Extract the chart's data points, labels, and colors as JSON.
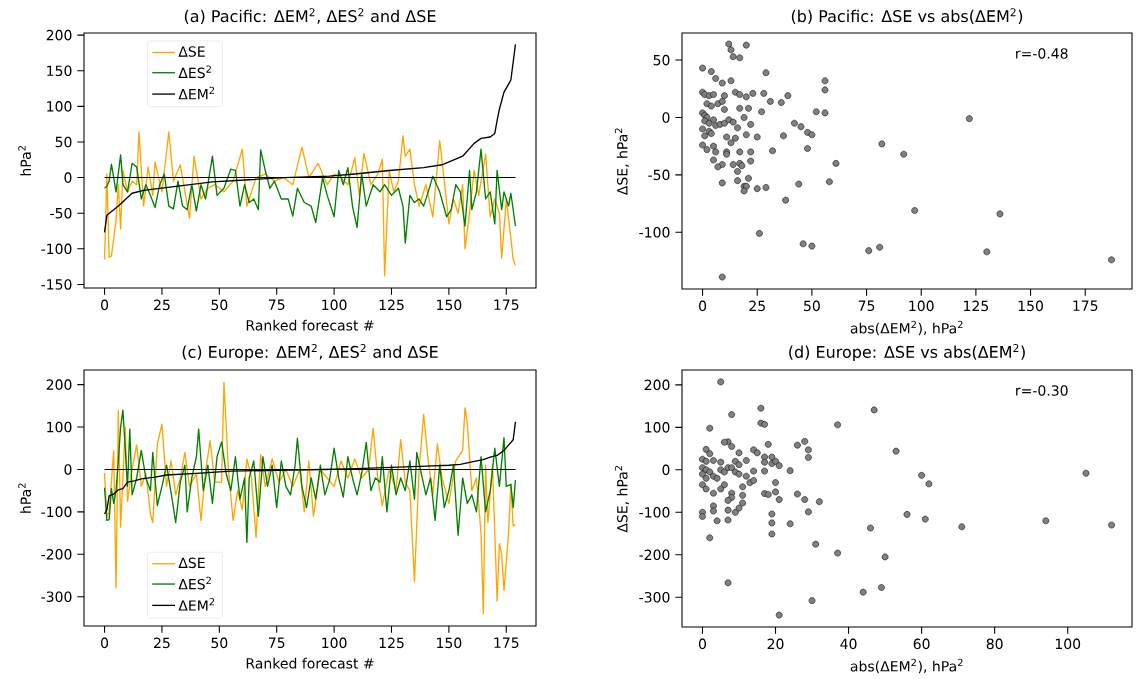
{
  "chart_data": [
    {
      "type": "line",
      "title": "(a) Pacific: ΔEM$^{2}$, ΔES$^{2}$ and ΔSE",
      "xlabel": "Ranked forecast #",
      "ylabel": "hPa$^{2}$",
      "xlim": [
        -8.95,
        187.95
      ],
      "ylim": [
        -155,
        203
      ],
      "xticks": [
        0,
        25,
        50,
        75,
        100,
        125,
        150,
        175
      ],
      "yticks": [
        -150,
        -100,
        -50,
        0,
        50,
        100,
        150,
        200
      ],
      "legend": "top left",
      "ref_lines": [
        {
          "axis": "y",
          "value": 0,
          "color": "#000000"
        }
      ],
      "series": [
        {
          "name": "ΔSE",
          "color": "#ffa500",
          "x": [
            0,
            1,
            2,
            3,
            5,
            6,
            7,
            8,
            10,
            12,
            14,
            15,
            17,
            19,
            21,
            22,
            25,
            28,
            30,
            33,
            37,
            39,
            42,
            45,
            48,
            52,
            56,
            60,
            62,
            66,
            70,
            74,
            78,
            82,
            86,
            89,
            93,
            97,
            100,
            103,
            106,
            109,
            111,
            113,
            116,
            119,
            121,
            122,
            124,
            126,
            128,
            130,
            131,
            133,
            135,
            137,
            140,
            143,
            146,
            148,
            150,
            152,
            154,
            156,
            157,
            159,
            161,
            163,
            166,
            168,
            170,
            172,
            173,
            175,
            177,
            178,
            179
          ],
          "values": [
            -115,
            5,
            -112,
            -110,
            -60,
            -10,
            -72,
            10,
            -20,
            -5,
            -10,
            64,
            -40,
            15,
            -25,
            22,
            -20,
            64,
            -5,
            18,
            -57,
            30,
            -30,
            -15,
            -10,
            -20,
            -5,
            40,
            -40,
            0,
            5,
            -5,
            0,
            -10,
            43,
            0,
            20,
            -10,
            5,
            0,
            -10,
            28,
            -25,
            34,
            -10,
            5,
            26,
            -138,
            10,
            -20,
            -5,
            59,
            30,
            40,
            -10,
            -40,
            -10,
            -55,
            52,
            -5,
            -65,
            -30,
            -50,
            -10,
            -100,
            -50,
            10,
            -25,
            33,
            -55,
            -30,
            -50,
            -113,
            -30,
            -85,
            -115,
            -123
          ]
        },
        {
          "name": "ΔES$^{2}$",
          "color": "#008000",
          "x": [
            0,
            1,
            2,
            3,
            5,
            7,
            8,
            10,
            12,
            14,
            16,
            18,
            20,
            22,
            24,
            26,
            28,
            30,
            32,
            34,
            36,
            38,
            40,
            42,
            44,
            47,
            49,
            52,
            55,
            57,
            59,
            61,
            63,
            65,
            67,
            68,
            70,
            72,
            74,
            77,
            80,
            82,
            84,
            87,
            90,
            92,
            95,
            97,
            100,
            102,
            104,
            106,
            108,
            110,
            112,
            114,
            117,
            120,
            122,
            125,
            128,
            130,
            131,
            133,
            135,
            137,
            139,
            141,
            143,
            146,
            149,
            151,
            153,
            155,
            157,
            159,
            160,
            162,
            164,
            166,
            168,
            170,
            171,
            173,
            174,
            176,
            177,
            179
          ],
          "values": [
            -15,
            -12,
            -5,
            19,
            -20,
            32,
            -10,
            -20,
            20,
            15,
            -30,
            -10,
            -25,
            -42,
            -10,
            5,
            -40,
            -44,
            -5,
            -40,
            -45,
            -10,
            -47,
            -10,
            -30,
            30,
            -25,
            -15,
            12,
            10,
            -40,
            -10,
            -35,
            -30,
            -45,
            39,
            10,
            -15,
            -5,
            -30,
            -30,
            -54,
            -15,
            -35,
            -40,
            -63,
            0,
            -25,
            -55,
            10,
            -10,
            14,
            -40,
            -70,
            5,
            -40,
            -10,
            -20,
            -10,
            -25,
            -15,
            -40,
            -92,
            -25,
            -35,
            -30,
            -40,
            -20,
            2,
            -20,
            -55,
            -45,
            -10,
            -20,
            -68,
            10,
            -45,
            -20,
            40,
            -30,
            -20,
            -65,
            10,
            -45,
            -20,
            -40,
            -22,
            -68
          ]
        },
        {
          "name": "ΔEM$^{2}$",
          "color": "#000000",
          "x": [
            0,
            1,
            4,
            7,
            10,
            12,
            17,
            32,
            47,
            63,
            78,
            98,
            109,
            124,
            139,
            147,
            156,
            161,
            164,
            168,
            170,
            171,
            172,
            174,
            177,
            179
          ],
          "values": [
            -77,
            -53,
            -45,
            -37,
            -28,
            -22,
            -18,
            -12,
            -6,
            -3,
            0,
            2,
            5,
            10,
            14,
            18,
            30,
            48,
            55,
            57,
            62,
            80,
            96,
            120,
            137,
            187
          ]
        }
      ]
    },
    {
      "type": "scatter",
      "title": "(b) Pacific: ΔSE vs abs(ΔEM$^{2}$)",
      "xlabel": "abs(ΔEM$^{2}$), hPa$^{2}$",
      "ylabel": "ΔSE, hPa$^{2}$",
      "xlim": [
        -9.4,
        196.4
      ],
      "ylim": [
        -149.4,
        73.6
      ],
      "xticks": [
        0,
        25,
        50,
        75,
        100,
        125,
        150,
        175
      ],
      "yticks": [
        -100,
        -50,
        0,
        50
      ],
      "marker": "circle",
      "annotations": [
        "r=-0.48"
      ],
      "series": [
        {
          "color": "#808080",
          "x": [
            12,
            13,
            20,
            14,
            17,
            0,
            4,
            29,
            6,
            9,
            13,
            56,
            56,
            0,
            1,
            3,
            5,
            10,
            15,
            17,
            20,
            23,
            28,
            39,
            31,
            36,
            52,
            56,
            27,
            21,
            17,
            10,
            2,
            4,
            7,
            9,
            0,
            1,
            2,
            1,
            3,
            5,
            6,
            0,
            1,
            3,
            4,
            8,
            10,
            12,
            14,
            16,
            19,
            22,
            42,
            45,
            48,
            50,
            37,
            25,
            20,
            15,
            13,
            11,
            0,
            2,
            5,
            6,
            11,
            11,
            17,
            22,
            32,
            48,
            82,
            92,
            5,
            9,
            7,
            14,
            17,
            18,
            22,
            16,
            61,
            9,
            16,
            21,
            19,
            20,
            19,
            25,
            29,
            44,
            58,
            38,
            97,
            136,
            26,
            46,
            50,
            76,
            81,
            130,
            187,
            9,
            122
          ],
          "values": [
            64,
            59,
            63,
            53,
            52,
            43,
            40,
            39,
            34,
            30,
            32,
            32,
            24,
            22,
            20,
            19,
            20,
            19,
            22,
            20,
            18,
            21,
            21,
            19,
            14,
            13,
            5,
            4,
            5,
            8,
            8,
            7,
            12,
            10,
            12,
            14,
            4,
            2,
            0,
            -3,
            -5,
            -2,
            -7,
            -10,
            -16,
            -12,
            -14,
            -6,
            -5,
            -2,
            -4,
            -9,
            0,
            -6,
            -5,
            -8,
            -13,
            -15,
            -16,
            -17,
            -15,
            -18,
            -22,
            -17,
            -24,
            -28,
            -25,
            -30,
            -30,
            -32,
            -30,
            -30,
            -29,
            -27,
            -23,
            -32,
            -37,
            -41,
            -43,
            -41,
            -40,
            -42,
            -38,
            -47,
            -40,
            -57,
            -55,
            -53,
            -60,
            -60,
            -64,
            -62,
            -61,
            -58,
            -56,
            -72,
            -81,
            -84,
            -101,
            -110,
            -112,
            -116,
            -113,
            -117,
            -124,
            -139,
            -1
          ]
        }
      ]
    },
    {
      "type": "line",
      "title": "(c) Europe: ΔEM$^{2}$, ΔES$^{2}$ and ΔSE",
      "xlabel": "Ranked forecast #",
      "ylabel": "hPa$^{2}$",
      "xlim": [
        -8.95,
        187.95
      ],
      "ylim": [
        -369,
        234.5
      ],
      "xticks": [
        0,
        25,
        50,
        75,
        100,
        125,
        150,
        175
      ],
      "yticks": [
        -300,
        -200,
        -100,
        0,
        100,
        200
      ],
      "legend": "bottom left",
      "ref_lines": [
        {
          "axis": "y",
          "value": 0,
          "color": "#000000"
        }
      ],
      "series": [
        {
          "name": "ΔSE",
          "color": "#ffa500",
          "x": [
            0,
            1,
            2,
            4,
            5,
            6,
            7,
            9,
            10,
            12,
            14,
            16,
            18,
            20,
            21,
            23,
            25,
            27,
            29,
            31,
            33,
            35,
            37,
            40,
            42,
            44,
            46,
            48,
            51,
            52,
            54,
            56,
            58,
            60,
            62,
            64,
            66,
            68,
            70,
            73,
            76,
            79,
            82,
            85,
            87,
            89,
            91,
            94,
            97,
            100,
            103,
            106,
            109,
            112,
            115,
            117,
            119,
            121,
            124,
            127,
            129,
            131,
            133,
            135,
            137,
            139,
            141,
            143,
            145,
            147,
            150,
            153,
            156,
            157,
            158,
            160,
            162,
            164,
            165,
            166,
            167,
            169,
            171,
            172,
            173,
            174,
            176,
            177,
            178,
            179
          ],
          "values": [
            -8,
            -110,
            -100,
            45,
            -278,
            140,
            -136,
            100,
            -75,
            0,
            58,
            -40,
            -10,
            -105,
            -125,
            60,
            107,
            -40,
            20,
            -60,
            -20,
            40,
            -40,
            -10,
            -120,
            -5,
            68,
            -30,
            -30,
            205,
            -5,
            -120,
            -50,
            -95,
            25,
            -20,
            -160,
            35,
            -40,
            25,
            -30,
            0,
            -40,
            0,
            -100,
            20,
            -110,
            0,
            -20,
            -40,
            20,
            -20,
            25,
            -20,
            0,
            97,
            -20,
            -85,
            0,
            -50,
            70,
            -30,
            -50,
            -265,
            0,
            130,
            20,
            -60,
            60,
            -20,
            -80,
            20,
            45,
            145,
            110,
            -50,
            -20,
            -150,
            -340,
            10,
            -125,
            10,
            -310,
            -175,
            -200,
            -285,
            -150,
            -35,
            -133,
            -130
          ]
        },
        {
          "name": "ΔES$^{2}$",
          "color": "#008000",
          "x": [
            0,
            1,
            2,
            3,
            4,
            5,
            6,
            7,
            8,
            9,
            10,
            11,
            12,
            14,
            16,
            18,
            20,
            21,
            23,
            25,
            27,
            29,
            31,
            33,
            35,
            36,
            38,
            40,
            41,
            43,
            45,
            47,
            49,
            51,
            53,
            55,
            57,
            59,
            61,
            62,
            63,
            65,
            67,
            69,
            71,
            73,
            75,
            77,
            79,
            81,
            83,
            84,
            86,
            88,
            90,
            92,
            94,
            96,
            98,
            100,
            102,
            104,
            106,
            108,
            110,
            112,
            114,
            116,
            118,
            120,
            121,
            123,
            125,
            127,
            129,
            131,
            133,
            135,
            136,
            138,
            140,
            142,
            144,
            146,
            148,
            150,
            152,
            154,
            156,
            158,
            160,
            162,
            164,
            166,
            168,
            170,
            172,
            174,
            175,
            177,
            178,
            179
          ],
          "values": [
            -43,
            -120,
            -118,
            -45,
            -80,
            -50,
            20,
            100,
            140,
            50,
            -40,
            95,
            -60,
            -20,
            45,
            -20,
            -50,
            40,
            -85,
            -40,
            10,
            -55,
            -125,
            -30,
            10,
            -100,
            -20,
            30,
            95,
            -50,
            10,
            -80,
            30,
            65,
            -10,
            -50,
            30,
            -70,
            -20,
            -172,
            -20,
            20,
            -110,
            30,
            -40,
            10,
            -90,
            20,
            -40,
            -60,
            10,
            73,
            -40,
            -90,
            -20,
            -70,
            10,
            -60,
            -25,
            50,
            -20,
            -65,
            30,
            -20,
            -60,
            -10,
            64,
            -50,
            -20,
            -30,
            30,
            -100,
            10,
            -60,
            -20,
            -50,
            20,
            -70,
            40,
            -10,
            -60,
            -20,
            -120,
            10,
            -90,
            -50,
            10,
            -155,
            -20,
            -80,
            -60,
            -100,
            30,
            -100,
            -50,
            50,
            -40,
            75,
            -40,
            -35,
            -90,
            -25
          ]
        },
        {
          "name": "ΔEM$^{2}$",
          "color": "#000000",
          "x": [
            0,
            1,
            2,
            4,
            6,
            8,
            10,
            13,
            16,
            22,
            27,
            40,
            55,
            75,
            95,
            110,
            125,
            140,
            150,
            155,
            160,
            165,
            168,
            171,
            174,
            178,
            179
          ],
          "values": [
            -105,
            -95,
            -62,
            -58,
            -48,
            -45,
            -30,
            -27,
            -22,
            -18,
            -13,
            -9,
            -4,
            -2,
            0,
            2,
            5,
            8,
            10,
            12,
            18,
            23,
            29,
            33,
            45,
            70,
            112
          ]
        }
      ]
    },
    {
      "type": "scatter",
      "title": "(d) Europe: ΔSE vs abs(ΔEM$^{2}$)",
      "xlabel": "abs(ΔEM$^{2}$), hPa$^{2}$",
      "ylabel": "ΔSE, hPa$^{2}$",
      "xlim": [
        -5.6,
        117.6
      ],
      "ylim": [
        -370,
        235
      ],
      "xticks": [
        0,
        20,
        40,
        60,
        80,
        100
      ],
      "yticks": [
        -300,
        -200,
        -100,
        0,
        100,
        200
      ],
      "marker": "circle",
      "annotations": [
        "r=-0.30"
      ],
      "series": [
        {
          "color": "#808080",
          "x": [
            5,
            16,
            47,
            8,
            16,
            17,
            37,
            2,
            7,
            6,
            8,
            18,
            26,
            28,
            29,
            29,
            53,
            14,
            15,
            10,
            1,
            2,
            0,
            1,
            3,
            5,
            9,
            10,
            12,
            17,
            19,
            17,
            19,
            20,
            21,
            0,
            1,
            0,
            1,
            2,
            3,
            4,
            5,
            6,
            7,
            8,
            9,
            10,
            12,
            14,
            17,
            11,
            13,
            14,
            0,
            1,
            3,
            5,
            6,
            8,
            8,
            7,
            11,
            11,
            17,
            18,
            20,
            21,
            26,
            28,
            32,
            24,
            20,
            60,
            62,
            105,
            3,
            3,
            0,
            0,
            7,
            9,
            10,
            7,
            4,
            2,
            19,
            19,
            19,
            24,
            29,
            31,
            37,
            46,
            50,
            56,
            61,
            71,
            94,
            112,
            7,
            44,
            49,
            30,
            21
          ],
          "values": [
            207,
            145,
            141,
            130,
            110,
            107,
            106,
            98,
            66,
            65,
            55,
            60,
            58,
            67,
            47,
            29,
            44,
            47,
            40,
            40,
            48,
            38,
            25,
            20,
            22,
            18,
            20,
            12,
            22,
            30,
            30,
            18,
            15,
            20,
            10,
            5,
            0,
            -10,
            -20,
            -5,
            -15,
            -20,
            0,
            -5,
            5,
            5,
            -5,
            -10,
            -15,
            -3,
            -3,
            -40,
            -30,
            -25,
            -35,
            -45,
            -55,
            -45,
            -35,
            -55,
            -65,
            -72,
            -60,
            -78,
            -56,
            -58,
            -52,
            -70,
            -57,
            -70,
            -75,
            -2,
            -30,
            -13,
            -33,
            -8,
            -85,
            -97,
            -100,
            -110,
            -95,
            -100,
            -90,
            -118,
            -120,
            -160,
            -104,
            -125,
            -151,
            -127,
            -99,
            -175,
            -196,
            -137,
            -205,
            -105,
            -116,
            -134,
            -120,
            -130,
            -266,
            -288,
            -277,
            -308,
            -342
          ]
        }
      ]
    }
  ]
}
